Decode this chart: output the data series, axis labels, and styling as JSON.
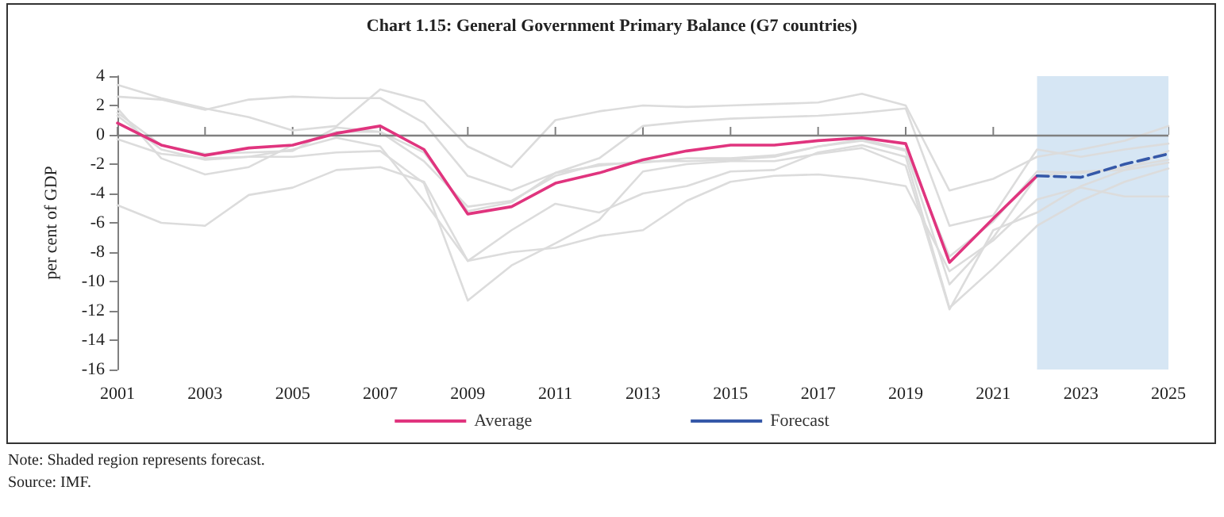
{
  "chart_data": {
    "type": "line",
    "title": "Chart 1.15: General Government Primary Balance (G7 countries)",
    "ylabel": "per cent of GDP",
    "x": [
      2001,
      2002,
      2003,
      2004,
      2005,
      2006,
      2007,
      2008,
      2009,
      2010,
      2011,
      2012,
      2013,
      2014,
      2015,
      2016,
      2017,
      2018,
      2019,
      2020,
      2021,
      2022,
      2023,
      2024,
      2025
    ],
    "series": [
      {
        "color": "#dcdcdc",
        "values": [
          3.4,
          2.5,
          1.8,
          1.2,
          0.3,
          0.6,
          3.1,
          2.3,
          -0.8,
          -2.2,
          1.0,
          1.6,
          2.0,
          1.9,
          2.0,
          2.1,
          2.2,
          2.8,
          2.0,
          -3.8,
          -3.0,
          -1.5,
          -1.0,
          -0.4,
          0.6
        ]
      },
      {
        "color": "#dcdcdc",
        "values": [
          2.6,
          2.4,
          1.7,
          2.4,
          2.6,
          2.5,
          2.5,
          0.8,
          -2.8,
          -3.8,
          -2.6,
          -1.6,
          0.6,
          0.9,
          1.1,
          1.2,
          1.3,
          1.5,
          1.8,
          -6.2,
          -5.5,
          -1.0,
          -1.5,
          -1.0,
          -0.6
        ]
      },
      {
        "color": "#dcdcdc",
        "values": [
          1.8,
          -1.6,
          -2.7,
          -2.2,
          -0.7,
          0.2,
          0.2,
          -1.2,
          -5.2,
          -4.6,
          -2.6,
          -2.1,
          -1.8,
          -1.8,
          -1.7,
          -1.5,
          -0.8,
          -0.4,
          -1.1,
          -10.2,
          -7.0,
          -2.8,
          -2.5,
          -2.4,
          -1.9
        ]
      },
      {
        "color": "#dcdcdc",
        "values": [
          1.3,
          -1.0,
          -1.7,
          -1.5,
          -1.0,
          -0.2,
          -0.8,
          -4.5,
          -8.6,
          -6.5,
          -4.7,
          -5.3,
          -4.0,
          -3.5,
          -2.5,
          -2.4,
          -1.2,
          -0.7,
          -1.5,
          -11.8,
          -9.1,
          -6.2,
          -4.5,
          -3.2,
          -2.3
        ]
      },
      {
        "color": "#dcdcdc",
        "values": [
          -0.3,
          -1.3,
          -1.6,
          -1.5,
          -1.5,
          -1.2,
          -1.1,
          -3.3,
          -11.3,
          -8.9,
          -7.4,
          -5.8,
          -2.5,
          -2.0,
          -1.8,
          -1.8,
          -1.3,
          -0.9,
          -2.1,
          -11.9,
          -6.5,
          -5.3,
          -3.5,
          -2.4,
          -1.1
        ]
      },
      {
        "color": "#dcdcdc",
        "values": [
          -4.8,
          -6.0,
          -6.2,
          -4.1,
          -3.6,
          -2.4,
          -2.2,
          -3.2,
          -8.6,
          -8.0,
          -7.7,
          -6.9,
          -6.5,
          -4.5,
          -3.2,
          -2.8,
          -2.7,
          -3.0,
          -3.5,
          -9.3,
          -7.2,
          -4.4,
          -3.6,
          -4.2,
          -4.2
        ]
      },
      {
        "color": "#dcdcdc",
        "values": [
          1.5,
          -0.7,
          -1.3,
          -1.2,
          -1.1,
          0.5,
          0.2,
          -1.8,
          -4.9,
          -4.5,
          -2.8,
          -2.0,
          -1.9,
          -1.6,
          -1.6,
          -1.4,
          -0.8,
          -0.3,
          -1.0,
          -8.3,
          -5.9,
          -2.5,
          -2.6,
          -2.2,
          -1.7
        ]
      },
      {
        "name": "Average",
        "color": "#e0347e",
        "line_style": "solid",
        "values": [
          0.8,
          -0.7,
          -1.4,
          -0.9,
          -0.7,
          0.1,
          0.6,
          -1.0,
          -5.4,
          -4.9,
          -3.3,
          -2.6,
          -1.7,
          -1.1,
          -0.7,
          -0.7,
          -0.4,
          -0.2,
          -0.6,
          -8.7,
          -5.7,
          -2.8,
          null,
          null,
          null
        ]
      },
      {
        "name": "Forecast",
        "color": "#3558a8",
        "line_style": "dashed",
        "values": [
          null,
          null,
          null,
          null,
          null,
          null,
          null,
          null,
          null,
          null,
          null,
          null,
          null,
          null,
          null,
          null,
          null,
          null,
          null,
          null,
          null,
          -2.8,
          -2.9,
          -2.0,
          -1.3
        ]
      }
    ],
    "xlim": [
      2001,
      2025
    ],
    "xticks": [
      2001,
      2003,
      2005,
      2007,
      2009,
      2011,
      2013,
      2015,
      2017,
      2019,
      2021,
      2023,
      2025
    ],
    "ylim": [
      -16,
      4
    ],
    "yticks": [
      -16,
      -14,
      -12,
      -10,
      -8,
      -6,
      -4,
      -2,
      0,
      2,
      4
    ],
    "ref_lines": [
      {
        "axis": "y",
        "value": 0,
        "color": "#808080"
      }
    ],
    "bands": [
      {
        "axis": "x",
        "from": 2022,
        "to": 2025,
        "color": "#d6e6f4"
      }
    ],
    "grid": false,
    "legend": "bottom",
    "marker": "none",
    "annotations": [
      "Note: Shaded region represents forecast.",
      "Source: IMF."
    ]
  }
}
